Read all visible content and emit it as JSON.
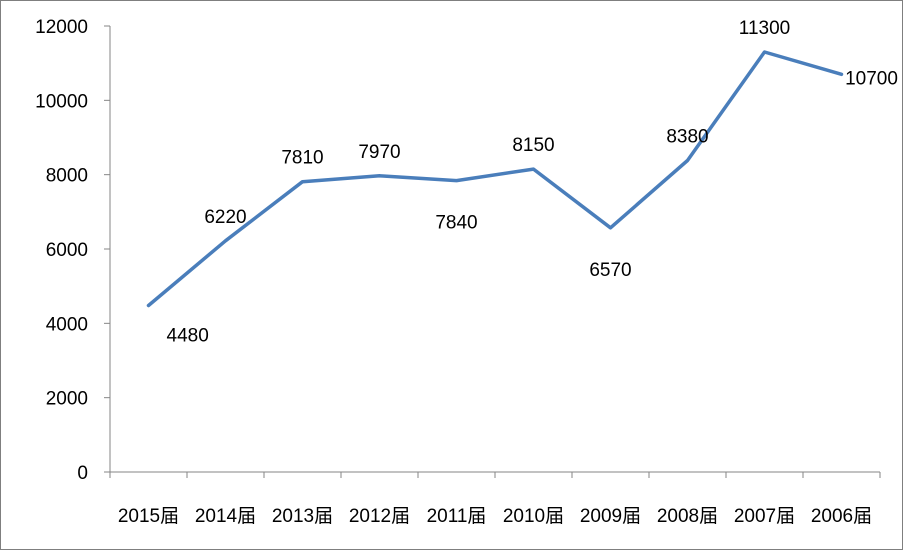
{
  "chart_data": {
    "type": "line",
    "title": "",
    "xlabel": "",
    "ylabel": "",
    "categories": [
      "2015届",
      "2014届",
      "2013届",
      "2012届",
      "2011届",
      "2010届",
      "2009届",
      "2008届",
      "2007届",
      "2006届"
    ],
    "series": [
      {
        "values": [
          4480,
          6220,
          7810,
          7970,
          7840,
          8150,
          6570,
          8380,
          11300,
          10700
        ],
        "color": "#4a7ebb"
      }
    ],
    "ylim": [
      0,
      12000
    ],
    "yticks": [
      0,
      2000,
      4000,
      6000,
      8000,
      10000,
      12000
    ],
    "grid": false,
    "legend": "none"
  }
}
